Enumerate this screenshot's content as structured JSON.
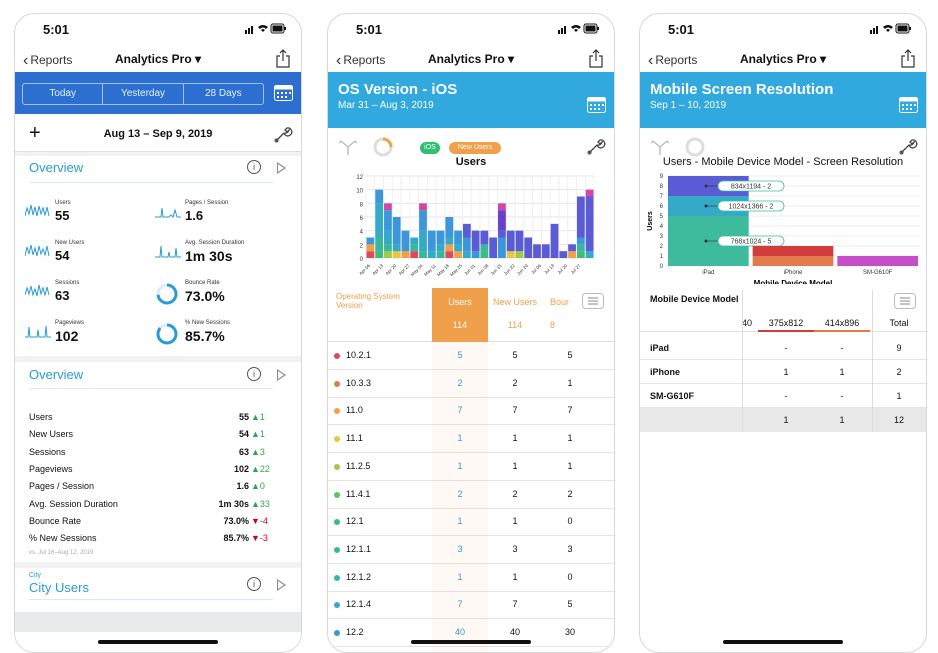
{
  "colors": {
    "accent": "#2a9bd6",
    "header_blue": "#31a9de",
    "segment_blue": "#2d6fd0",
    "orange": "#f0a04a",
    "up": "#2fa84f",
    "down": "#d0021b"
  },
  "screen1": {
    "time": "5:01",
    "back": "Reports",
    "title": "Analytics Pro",
    "segments": [
      "Today",
      "Yesterday",
      "28 Days"
    ],
    "date_range": "Aug 13 – Sep 9, 2019",
    "overview_title": "Overview",
    "metrics": [
      {
        "label": "Users",
        "value": "55"
      },
      {
        "label": "Pages / Session",
        "value": "1.6"
      },
      {
        "label": "New Users",
        "value": "54"
      },
      {
        "label": "Avg. Session Duration",
        "value": "1m 30s"
      },
      {
        "label": "Sessions",
        "value": "63"
      },
      {
        "label": "Bounce Rate",
        "value": "73.0%",
        "pct": 0.73
      },
      {
        "label": "Pageviews",
        "value": "102"
      },
      {
        "label": "% New Sessions",
        "value": "85.7%",
        "pct": 0.857
      }
    ],
    "overview2_title": "Overview",
    "rows": [
      {
        "name": "Users",
        "value": "55",
        "delta": "▲1",
        "dir": "up"
      },
      {
        "name": "New Users",
        "value": "54",
        "delta": "▲1",
        "dir": "up"
      },
      {
        "name": "Sessions",
        "value": "63",
        "delta": "▲3",
        "dir": "up"
      },
      {
        "name": "Pageviews",
        "value": "102",
        "delta": "▲22",
        "dir": "up"
      },
      {
        "name": "Pages / Session",
        "value": "1.6",
        "delta": "▲0",
        "dir": "up"
      },
      {
        "name": "Avg. Session Duration",
        "value": "1m 30s",
        "delta": "▲33",
        "dir": "up"
      },
      {
        "name": "Bounce Rate",
        "value": "73.0%",
        "delta": "▼-4",
        "dir": "dn"
      },
      {
        "name": "% New Sessions",
        "value": "85.7%",
        "delta": "▼-3",
        "dir": "dn"
      }
    ],
    "vs_text": "vs. Jul 16–Aug 12, 2019",
    "city_small": "City",
    "city_title": "City Users"
  },
  "screen2": {
    "time": "5:01",
    "back": "Reports",
    "title": "Analytics Pro",
    "header_title": "OS Version - iOS",
    "header_sub": "Mar 31 – Aug 3, 2019",
    "pill_ios": "iOS",
    "pill_new": "New Users",
    "chart_title": "Users",
    "col_header": "Operating System Version",
    "col_users": "Users",
    "col_new": "New Users",
    "col_bounce": "Bour",
    "total_users": "114",
    "total_new": "114",
    "total_bounce": "8",
    "rows": [
      {
        "v": "10.2.1",
        "c": "#e0495b",
        "u": "5",
        "n": "5",
        "b": "5"
      },
      {
        "v": "10.3.3",
        "c": "#e37a4b",
        "u": "2",
        "n": "2",
        "b": "1"
      },
      {
        "v": "11.0",
        "c": "#f0a04a",
        "u": "7",
        "n": "7",
        "b": "7"
      },
      {
        "v": "11.1",
        "c": "#e8c642",
        "u": "1",
        "n": "1",
        "b": "1"
      },
      {
        "v": "11.2.5",
        "c": "#9acb4a",
        "u": "1",
        "n": "1",
        "b": "1"
      },
      {
        "v": "11.4.1",
        "c": "#5cc45e",
        "u": "2",
        "n": "2",
        "b": "2"
      },
      {
        "v": "12.1",
        "c": "#3dbb77",
        "u": "1",
        "n": "1",
        "b": "0"
      },
      {
        "v": "12.1.1",
        "c": "#36b89c",
        "u": "3",
        "n": "3",
        "b": "3"
      },
      {
        "v": "12.1.2",
        "c": "#35b4b4",
        "u": "1",
        "n": "1",
        "b": "0"
      },
      {
        "v": "12.1.4",
        "c": "#34a9c8",
        "u": "7",
        "n": "7",
        "b": "5"
      },
      {
        "v": "12.2",
        "c": "#3b97d9",
        "u": "40",
        "n": "40",
        "b": "30"
      }
    ],
    "chart_data": {
      "type": "bar",
      "title": "Users",
      "ylim": [
        0,
        12
      ],
      "y_ticks": [
        "0",
        "2",
        "4",
        "6",
        "8",
        "10",
        "12"
      ],
      "x_tick_labels": [
        "Apr 06",
        "Apr 13",
        "Apr 20",
        "Apr 27",
        "May 04",
        "May 11",
        "May 18",
        "May 25",
        "Jun 01",
        "Jun 08",
        "Jun 15",
        "Jun 22",
        "Jun 29",
        "Jul 06",
        "Jul 13",
        "Jul 20",
        "Jul 27"
      ],
      "series_colors": [
        "#e0495b",
        "#f0a04a",
        "#e8c642",
        "#9acb4a",
        "#3dbb77",
        "#36b89c",
        "#34a9c8",
        "#3b97d9",
        "#5b5bd6",
        "#6a3fc9",
        "#d147a3"
      ],
      "bars": [
        [
          1,
          1,
          0,
          0,
          0,
          0,
          0,
          1,
          0,
          0,
          0
        ],
        [
          0,
          0,
          0,
          0,
          1,
          2,
          5,
          2,
          0,
          0,
          0
        ],
        [
          0,
          0,
          0,
          1,
          0,
          1,
          2,
          3,
          0,
          0,
          1
        ],
        [
          0,
          0,
          1,
          0,
          0,
          0,
          1,
          4,
          0,
          0,
          0
        ],
        [
          0,
          1,
          0,
          0,
          0,
          0,
          0,
          3,
          0,
          0,
          0
        ],
        [
          1,
          0,
          0,
          0,
          0,
          1,
          1,
          0,
          0,
          0,
          0
        ],
        [
          0,
          0,
          0,
          0,
          0,
          1,
          3,
          3,
          0,
          0,
          1
        ],
        [
          0,
          0,
          0,
          0,
          0,
          0,
          1,
          3,
          0,
          0,
          0
        ],
        [
          0,
          0,
          0,
          0,
          0,
          1,
          1,
          2,
          0,
          0,
          0
        ],
        [
          1,
          1,
          0,
          0,
          0,
          0,
          1,
          3,
          0,
          0,
          0
        ],
        [
          0,
          1,
          0,
          0,
          0,
          0,
          1,
          2,
          0,
          0,
          0
        ],
        [
          0,
          0,
          0,
          0,
          0,
          0,
          1,
          2,
          2,
          0,
          0
        ],
        [
          0,
          0,
          0,
          0,
          0,
          0,
          0,
          1,
          3,
          0,
          0
        ],
        [
          0,
          0,
          0,
          0,
          1,
          1,
          0,
          0,
          2,
          0,
          0
        ],
        [
          0,
          0,
          0,
          0,
          0,
          0,
          0,
          0,
          3,
          0,
          0
        ],
        [
          0,
          0,
          0,
          0,
          0,
          0,
          0,
          3,
          1,
          3,
          1
        ],
        [
          0,
          0,
          1,
          0,
          0,
          0,
          0,
          0,
          3,
          0,
          0
        ],
        [
          0,
          0,
          0,
          1,
          0,
          0,
          0,
          0,
          3,
          0,
          0
        ],
        [
          0,
          0,
          0,
          0,
          0,
          0,
          0,
          0,
          3,
          0,
          0
        ],
        [
          0,
          0,
          0,
          0,
          0,
          0,
          0,
          0,
          2,
          0,
          0
        ],
        [
          0,
          0,
          0,
          0,
          0,
          0,
          0,
          0,
          2,
          0,
          0
        ],
        [
          0,
          0,
          0,
          0,
          0,
          0,
          0,
          0,
          5,
          0,
          0
        ],
        [
          0,
          0,
          0,
          0,
          0,
          0,
          0,
          0,
          1,
          0,
          0
        ],
        [
          0,
          1,
          0,
          0,
          0,
          0,
          0,
          0,
          1,
          0,
          0
        ],
        [
          0,
          0,
          0,
          0,
          1,
          1,
          0,
          1,
          6,
          0,
          0
        ],
        [
          0,
          0,
          0,
          0,
          0,
          0,
          1,
          0,
          8,
          0,
          1
        ]
      ]
    }
  },
  "screen3": {
    "time": "5:01",
    "back": "Reports",
    "title": "Analytics Pro",
    "header_title": "Mobile Screen Resolution",
    "header_sub": "Sep 1 – 10, 2019",
    "chart_title": "Users - Mobile Device Model - Screen Resolution",
    "col_model": "Mobile Device Model",
    "cols": [
      "40",
      "375x812",
      "414x896",
      "Total"
    ],
    "rows": [
      {
        "l": "iPad",
        "a": "-",
        "b": "-",
        "t": "9"
      },
      {
        "l": "iPhone",
        "a": "1",
        "b": "1",
        "t": "2"
      },
      {
        "l": "SM-G610F",
        "a": "-",
        "b": "-",
        "t": "1"
      }
    ],
    "totals": {
      "a": "1",
      "b": "1",
      "t": "12"
    },
    "chart_data": {
      "type": "bar",
      "title": "Users - Mobile Device Model - Screen Resolution",
      "xlabel": "Mobile Device Model",
      "ylabel": "Users",
      "ylim": [
        0,
        9
      ],
      "y_ticks": [
        "0",
        "1",
        "2",
        "3",
        "4",
        "5",
        "6",
        "7",
        "8",
        "9"
      ],
      "categories": [
        "iPad",
        "iPhone",
        "SM-G610F"
      ],
      "stacks": [
        [
          {
            "label": "768x1024 - 5",
            "value": 5,
            "color": "#3dbb9c"
          },
          {
            "label": "1024x1366 - 2",
            "value": 2,
            "color": "#34a9c8"
          },
          {
            "label": "834x1194 - 2",
            "value": 2,
            "color": "#5b5bd6"
          }
        ],
        [
          {
            "label": "",
            "value": 1,
            "color": "#e37a4b"
          },
          {
            "label": "",
            "value": 1,
            "color": "#d13d3d"
          }
        ],
        [
          {
            "label": "",
            "value": 1,
            "color": "#c64fc8"
          }
        ]
      ]
    }
  }
}
